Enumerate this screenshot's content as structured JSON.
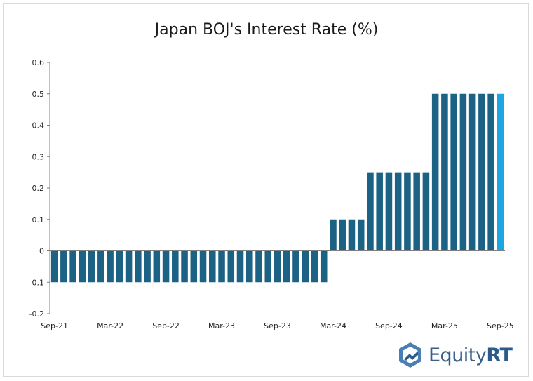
{
  "chart_data": {
    "type": "bar",
    "title": "Japan BOJ's Interest Rate (%)",
    "xlabel": "",
    "ylabel": "",
    "ylim": [
      -0.2,
      0.6
    ],
    "yticks": [
      -0.2,
      -0.1,
      0,
      0.1,
      0.2,
      0.3,
      0.4,
      0.5,
      0.6
    ],
    "x_tick_labels": [
      "Sep-21",
      "Mar-22",
      "Sep-22",
      "Mar-23",
      "Sep-23",
      "Mar-24",
      "Sep-24",
      "Mar-25",
      "Sep-25"
    ],
    "categories": [
      "Sep-21",
      "Oct-21",
      "Nov-21",
      "Dec-21",
      "Jan-22",
      "Feb-22",
      "Mar-22",
      "Apr-22",
      "May-22",
      "Jun-22",
      "Jul-22",
      "Aug-22",
      "Sep-22",
      "Oct-22",
      "Nov-22",
      "Dec-22",
      "Jan-23",
      "Feb-23",
      "Mar-23",
      "Apr-23",
      "May-23",
      "Jun-23",
      "Jul-23",
      "Aug-23",
      "Sep-23",
      "Oct-23",
      "Nov-23",
      "Dec-23",
      "Jan-24",
      "Feb-24",
      "Mar-24",
      "Apr-24",
      "May-24",
      "Jun-24",
      "Jul-24",
      "Aug-24",
      "Sep-24",
      "Oct-24",
      "Nov-24",
      "Dec-24",
      "Jan-25",
      "Feb-25",
      "Mar-25",
      "Apr-25",
      "May-25",
      "Jun-25",
      "Jul-25",
      "Aug-25",
      "Sep-25"
    ],
    "values": [
      -0.1,
      -0.1,
      -0.1,
      -0.1,
      -0.1,
      -0.1,
      -0.1,
      -0.1,
      -0.1,
      -0.1,
      -0.1,
      -0.1,
      -0.1,
      -0.1,
      -0.1,
      -0.1,
      -0.1,
      -0.1,
      -0.1,
      -0.1,
      -0.1,
      -0.1,
      -0.1,
      -0.1,
      -0.1,
      -0.1,
      -0.1,
      -0.1,
      -0.1,
      -0.1,
      0.1,
      0.1,
      0.1,
      0.1,
      0.25,
      0.25,
      0.25,
      0.25,
      0.25,
      0.25,
      0.25,
      0.5,
      0.5,
      0.5,
      0.5,
      0.5,
      0.5,
      0.5,
      0.5
    ],
    "colors": {
      "bar": "#1b6285",
      "highlight": "#1da6e3",
      "axis": "#7f7f7f"
    },
    "highlight_last": true,
    "grid": false,
    "legend": "none"
  },
  "logo": {
    "text_light": "Equity",
    "text_bold": "RT"
  }
}
